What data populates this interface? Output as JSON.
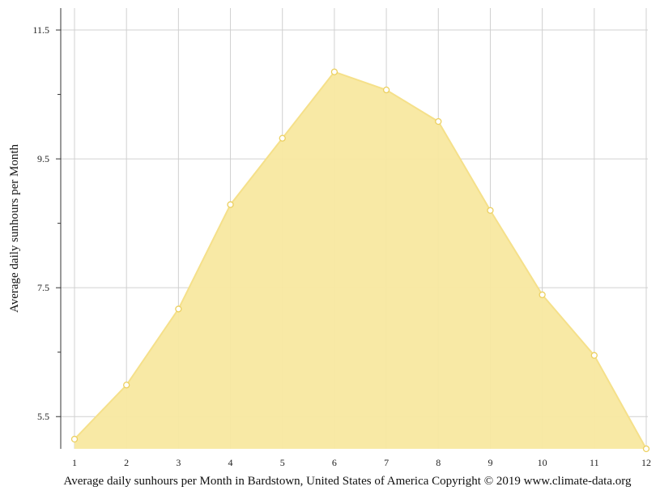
{
  "chart_data": {
    "type": "area",
    "title": "",
    "caption": "Average daily sunhours per Month in Bardstown, United States of America Copyright © 2019 www.climate-data.org",
    "ylabel": "Average daily sunhours per Month",
    "xlabel": "",
    "x": [
      1,
      2,
      3,
      4,
      5,
      6,
      7,
      8,
      9,
      10,
      11,
      12
    ],
    "x_tick_labels": [
      "1",
      "2",
      "3",
      "4",
      "5",
      "6",
      "7",
      "8",
      "9",
      "10",
      "11",
      "12"
    ],
    "series": [
      {
        "values": [
          5.15,
          5.99,
          7.17,
          8.79,
          9.82,
          10.85,
          10.57,
          10.08,
          8.7,
          7.39,
          6.45,
          5.0
        ]
      }
    ],
    "y_ticks": [
      5.5,
      7.5,
      9.5,
      11.5
    ],
    "y_tick_labels": [
      "5.5",
      "7.5",
      "9.5",
      "11.5"
    ],
    "y_minor_ticks": [
      6.5,
      8.5,
      10.5
    ],
    "ylim": [
      5.0,
      11.84
    ],
    "grid": true,
    "colors": {
      "fill": "#f8e8a0",
      "line": "#f5e08a",
      "marker_fill": "#ffffff",
      "marker_stroke": "#ecd060",
      "grid": "#d0d0d0",
      "axis": "#333333"
    }
  }
}
